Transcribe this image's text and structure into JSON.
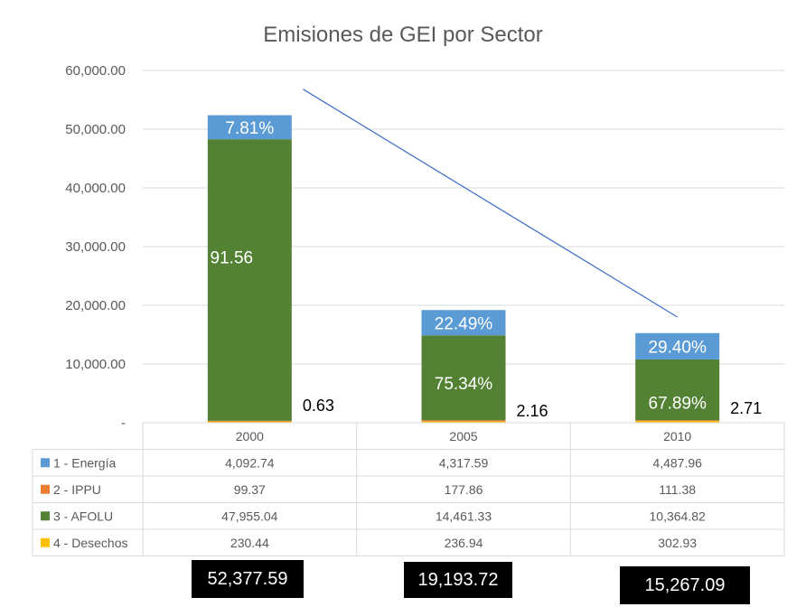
{
  "chart_data": {
    "type": "bar",
    "stacked": true,
    "title": "Emisiones de GEI por Sector",
    "categories": [
      "2000",
      "2005",
      "2010"
    ],
    "ylim": [
      0,
      60000
    ],
    "y_ticks": [
      "-",
      "10,000.00",
      "20,000.00",
      "30,000.00",
      "40,000.00",
      "50,000.00",
      "60,000.00"
    ],
    "grid": true,
    "series": [
      {
        "name": "1 - Energía",
        "color": "#5B9BD5",
        "values": [
          4092.74,
          4317.59,
          4487.96
        ],
        "labels": [
          "4,092.74",
          "4,317.59",
          "4,487.96"
        ]
      },
      {
        "name": "2 - IPPU",
        "color": "#ED7D31",
        "values": [
          99.37,
          177.86,
          111.38
        ],
        "labels": [
          "99.37",
          "177.86",
          "111.38"
        ]
      },
      {
        "name": "3 - AFOLU",
        "color": "#548235",
        "values": [
          47955.04,
          14461.33,
          10364.82
        ],
        "labels": [
          "47,955.04",
          "14,461.33",
          "10,364.82"
        ]
      },
      {
        "name": "4 - Desechos",
        "color": "#FFC000",
        "values": [
          230.44,
          236.94,
          302.93
        ],
        "labels": [
          "230.44",
          "236.94",
          "302.93"
        ]
      }
    ],
    "energia_pct_labels": [
      "7.81%",
      "22.49%",
      "29.40%"
    ],
    "afolu_pct_labels": [
      "91.56",
      "75.34%",
      "67.89%"
    ],
    "side_labels": [
      "0.63",
      "2.16",
      "2.71"
    ],
    "totals": [
      "52,377.59",
      "19,193.72",
      "15,267.09"
    ],
    "trendline": {
      "start": [
        0.25,
        56800
      ],
      "end": [
        2.0,
        18000
      ],
      "color": "#4472C4"
    }
  }
}
